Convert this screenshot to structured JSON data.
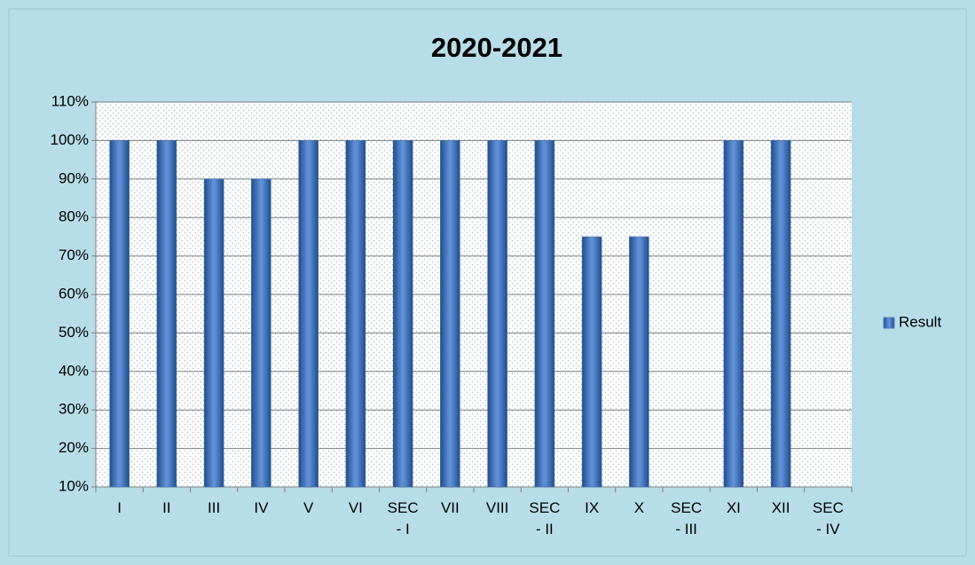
{
  "chart_data": {
    "type": "bar",
    "title": "2020-2021",
    "categories": [
      "I",
      "II",
      "III",
      "IV",
      "V",
      "VI",
      "SEC - I",
      "VII",
      "VIII",
      "SEC - II",
      "IX",
      "X",
      "SEC - III",
      "XI",
      "XII",
      "SEC - IV"
    ],
    "series": [
      {
        "name": "Result",
        "color": "#4f81bd",
        "values": [
          100,
          100,
          90,
          90,
          100,
          100,
          100,
          100,
          100,
          100,
          75,
          75,
          10,
          100,
          100,
          10
        ]
      }
    ],
    "ylim": [
      10,
      110
    ],
    "yticks": [
      {
        "value": 10,
        "label": "10%"
      },
      {
        "value": 20,
        "label": "20%"
      },
      {
        "value": 30,
        "label": "30%"
      },
      {
        "value": 40,
        "label": "40%"
      },
      {
        "value": 50,
        "label": "50%"
      },
      {
        "value": 60,
        "label": "60%"
      },
      {
        "value": 70,
        "label": "70%"
      },
      {
        "value": 80,
        "label": "80%"
      },
      {
        "value": 90,
        "label": "90%"
      },
      {
        "value": 100,
        "label": "100%"
      },
      {
        "value": 110,
        "label": "110%"
      }
    ],
    "grid": true,
    "legend": "right"
  }
}
